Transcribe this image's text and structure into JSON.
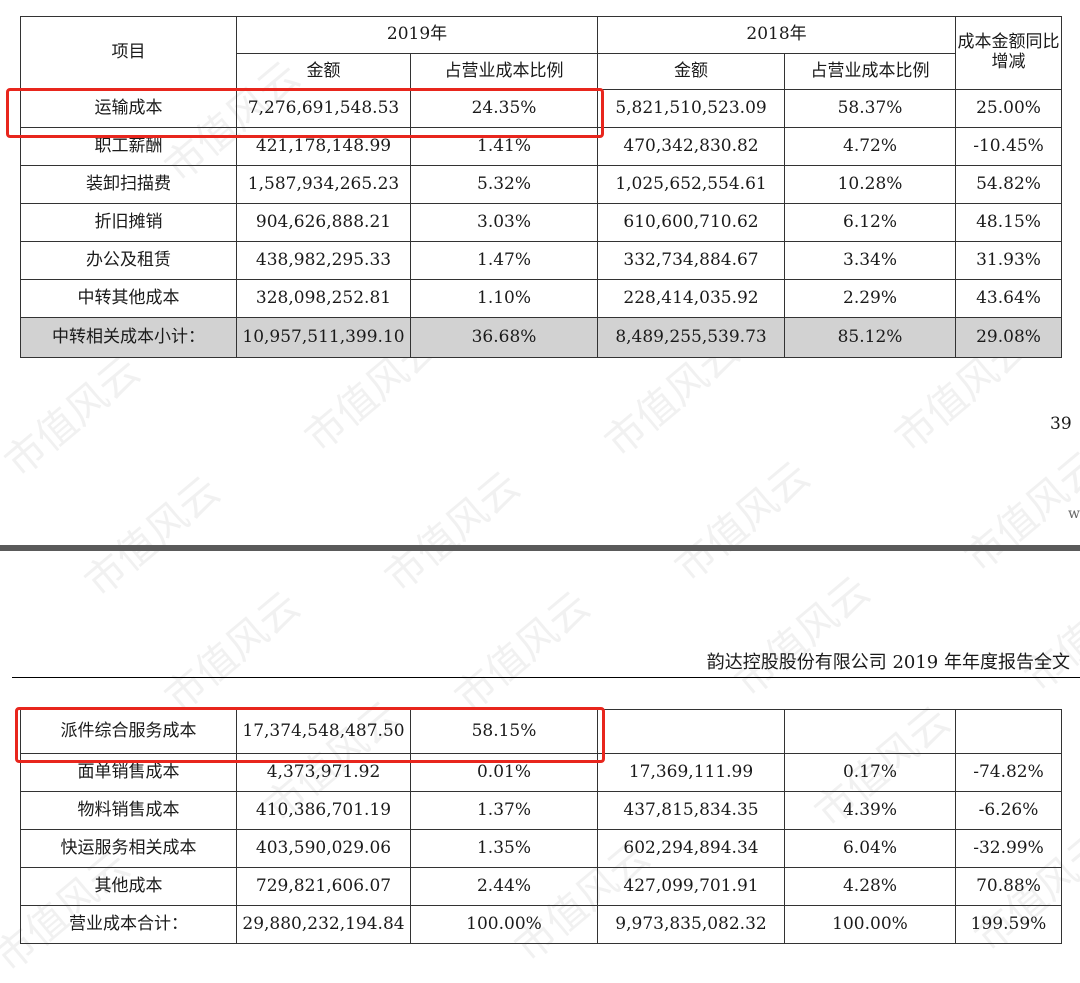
{
  "watermark_text": "市值风云",
  "page_number": "39",
  "edge_letter": "w",
  "report_title": "韵达控股股份有限公司 2019 年年度报告全文",
  "header": {
    "item": "项目",
    "y2019": "2019年",
    "y2018": "2018年",
    "change": "成本金额同比增减",
    "amount": "金额",
    "ratio": "占营业成本比例"
  },
  "table_top_rows": [
    {
      "item": "运输成本",
      "amt2019": "7,276,691,548.53",
      "pct2019": "24.35%",
      "amt2018": "5,821,510,523.09",
      "pct2018": "58.37%",
      "change": "25.00%"
    },
    {
      "item": "职工薪酬",
      "amt2019": "421,178,148.99",
      "pct2019": "1.41%",
      "amt2018": "470,342,830.82",
      "pct2018": "4.72%",
      "change": "-10.45%"
    },
    {
      "item": "装卸扫描费",
      "amt2019": "1,587,934,265.23",
      "pct2019": "5.32%",
      "amt2018": "1,025,652,554.61",
      "pct2018": "10.28%",
      "change": "54.82%"
    },
    {
      "item": "折旧摊销",
      "amt2019": "904,626,888.21",
      "pct2019": "3.03%",
      "amt2018": "610,600,710.62",
      "pct2018": "6.12%",
      "change": "48.15%"
    },
    {
      "item": "办公及租赁",
      "amt2019": "438,982,295.33",
      "pct2019": "1.47%",
      "amt2018": "332,734,884.67",
      "pct2018": "3.34%",
      "change": "31.93%"
    },
    {
      "item": "中转其他成本",
      "amt2019": "328,098,252.81",
      "pct2019": "1.10%",
      "amt2018": "228,414,035.92",
      "pct2018": "2.29%",
      "change": "43.64%"
    }
  ],
  "table_top_subtotal": {
    "item": "中转相关成本小计：",
    "amt2019": "10,957,511,399.10",
    "pct2019": "36.68%",
    "amt2018": "8,489,255,539.73",
    "pct2018": "85.12%",
    "change": "29.08%"
  },
  "table_bottom_rows": [
    {
      "item": "派件综合服务成本",
      "amt2019": "17,374,548,487.50",
      "pct2019": "58.15%",
      "amt2018": "",
      "pct2018": "",
      "change": ""
    },
    {
      "item": "面单销售成本",
      "amt2019": "4,373,971.92",
      "pct2019": "0.01%",
      "amt2018": "17,369,111.99",
      "pct2018": "0.17%",
      "change": "-74.82%"
    },
    {
      "item": "物料销售成本",
      "amt2019": "410,386,701.19",
      "pct2019": "1.37%",
      "amt2018": "437,815,834.35",
      "pct2018": "4.39%",
      "change": "-6.26%"
    },
    {
      "item": "快运服务相关成本",
      "amt2019": "403,590,029.06",
      "pct2019": "1.35%",
      "amt2018": "602,294,894.34",
      "pct2018": "6.04%",
      "change": "-32.99%"
    },
    {
      "item": "其他成本",
      "amt2019": "729,821,606.07",
      "pct2019": "2.44%",
      "amt2018": "427,099,701.91",
      "pct2018": "4.28%",
      "change": "70.88%"
    },
    {
      "item": "营业成本合计：",
      "amt2019": "29,880,232,194.84",
      "pct2019": "100.00%",
      "amt2018": "9,973,835,082.32",
      "pct2018": "100.00%",
      "change": "199.59%"
    }
  ],
  "colors": {
    "highlight": "#e8261d",
    "subtotal_bg": "#d2d2d2",
    "divider": "#5a5a5a"
  }
}
